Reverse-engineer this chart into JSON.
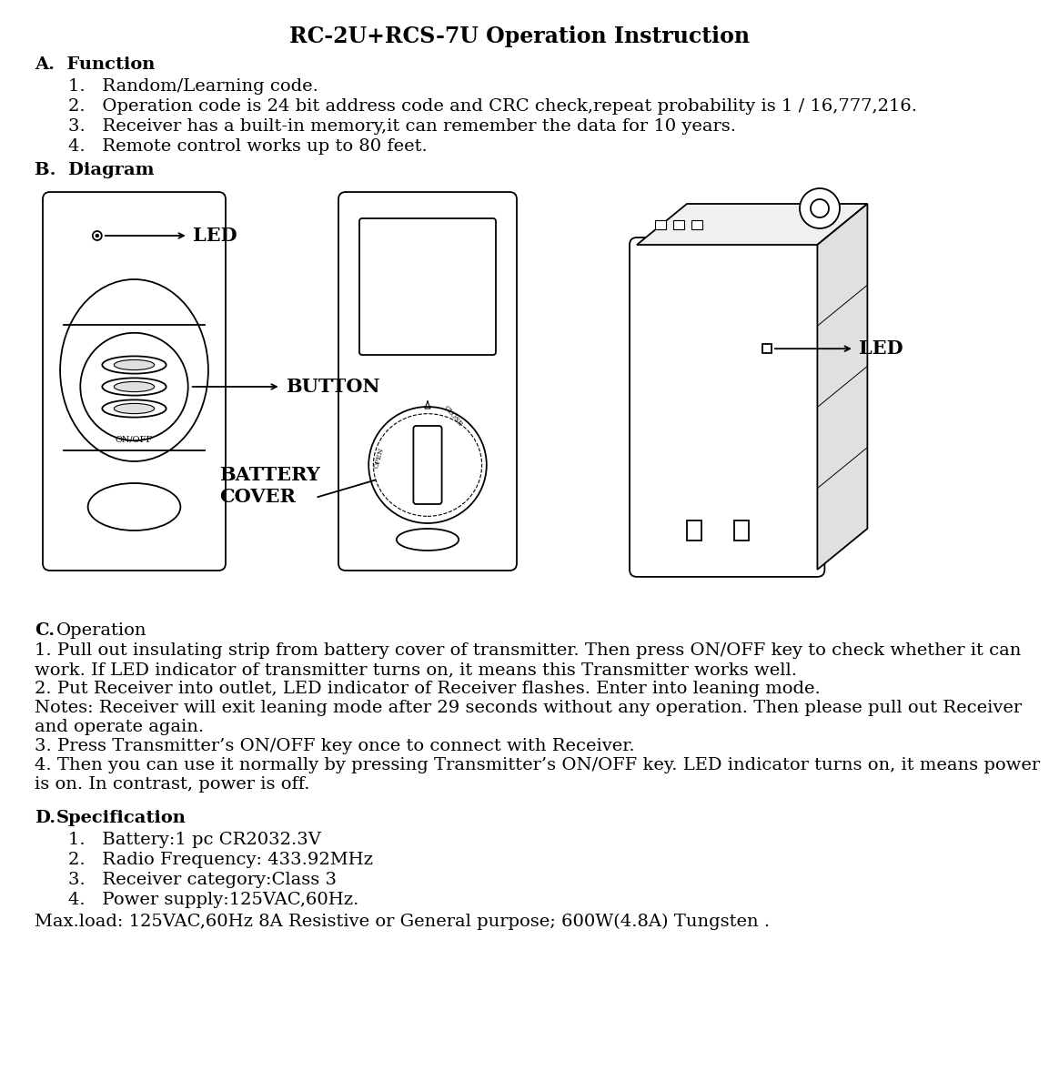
{
  "title": "RC-2U+RCS-7U Operation Instruction",
  "bg_color": "#ffffff",
  "text_color": "#000000",
  "section_A_header": "A.  Function",
  "section_A_items": [
    "1.   Random/Learning code.",
    "2.   Operation code is 24 bit address code and CRC check,repeat probability is 1 / 16,777,216.",
    "3.   Receiver has a built-in memory,it can remember the data for 10 years.",
    "4.   Remote control works up to 80 feet."
  ],
  "section_B_header": "B.  Diagram",
  "section_C_header": "C.",
  "section_C_header2": "Operation",
  "section_C_text": [
    "1. Pull out insulating strip from battery cover of transmitter. Then press ON/OFF key to check whether it can",
    "work. If LED indicator of transmitter turns on, it means this Transmitter works well.",
    "2. Put Receiver into outlet, LED indicator of Receiver flashes. Enter into leaning mode.",
    "Notes: Receiver will exit leaning mode after 29 seconds without any operation. Then please pull out Receiver",
    "and operate again.",
    "3. Press Transmitter’s ON/OFF key once to connect with Receiver.",
    "4. Then you can use it normally by pressing Transmitter’s ON/OFF key. LED indicator turns on, it means power",
    "is on. In contrast, power is off."
  ],
  "section_D_header": "D.",
  "section_D_header2": "Specification",
  "section_D_items": [
    "1.   Battery:1 pc CR2032.3V",
    "2.   Radio Frequency: 433.92MHz",
    "3.   Receiver category:Class 3",
    "4.   Power supply:125VAC,60Hz."
  ],
  "section_D_extra": "Max.load: 125VAC,60Hz 8A Resistive or General purpose; 600W(4.8A) Tungsten .",
  "title_fontsize": 17,
  "body_fontsize": 14,
  "header_fontsize": 14,
  "diagram_label_fontsize": 15
}
